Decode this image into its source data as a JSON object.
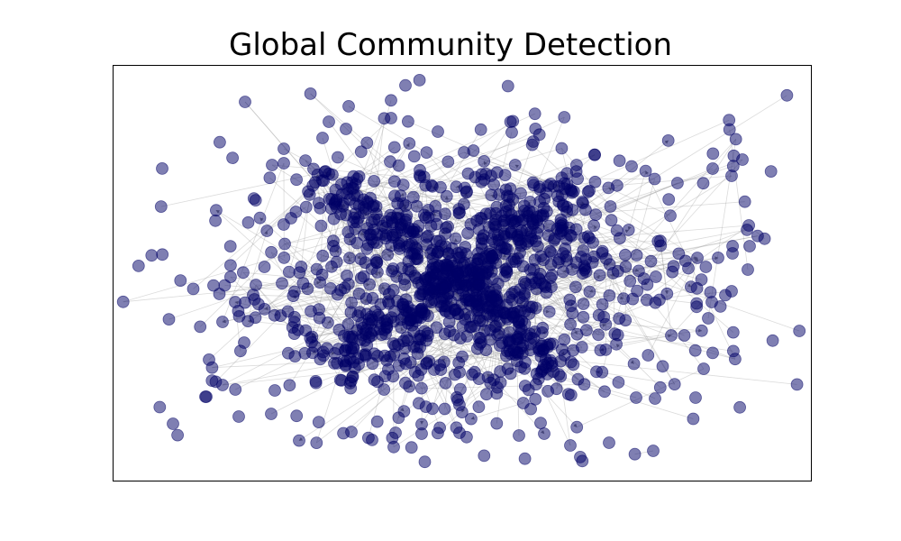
{
  "figure": {
    "title": "Global Community Detection"
  },
  "graph": {
    "node_color": "#000066",
    "node_opacity": 0.5,
    "edge_color": "#999999",
    "edge_opacity": 0.35,
    "directed": true
  }
}
